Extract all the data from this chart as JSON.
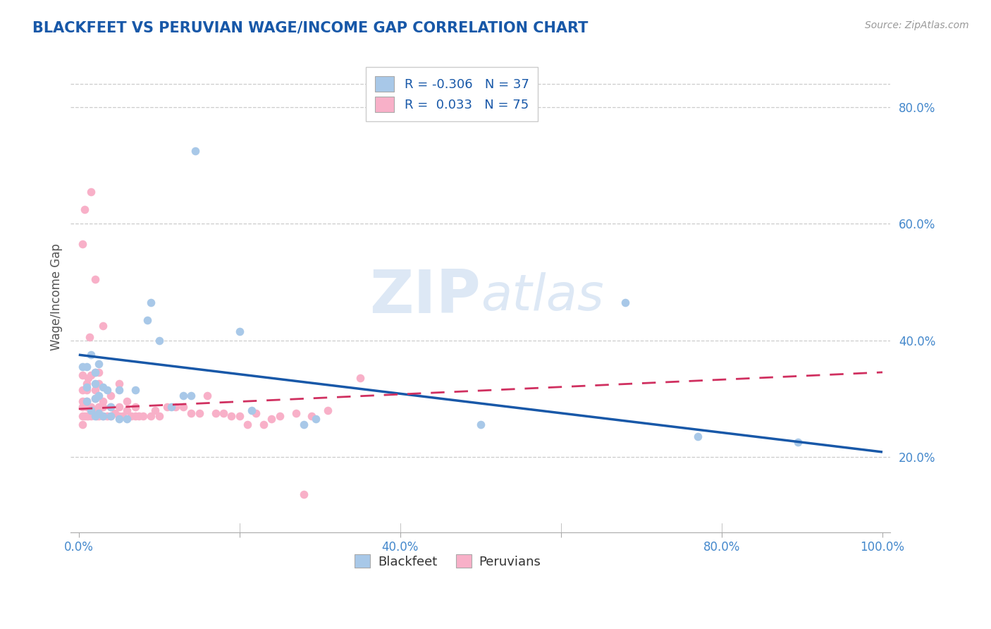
{
  "title": "BLACKFEET VS PERUVIAN WAGE/INCOME GAP CORRELATION CHART",
  "source": "Source: ZipAtlas.com",
  "ylabel": "Wage/Income Gap",
  "xlim": [
    -0.01,
    1.01
  ],
  "ylim": [
    0.07,
    0.88
  ],
  "xticks": [
    0.0,
    0.2,
    0.4,
    0.6,
    0.8,
    1.0
  ],
  "xticklabels": [
    "0.0%",
    "",
    "40.0%",
    "",
    "80.0%",
    "100.0%"
  ],
  "ytick_vals": [
    0.2,
    0.4,
    0.6,
    0.8
  ],
  "yticklabels": [
    "20.0%",
    "40.0%",
    "60.0%",
    "80.0%"
  ],
  "r_blackfeet": -0.306,
  "n_blackfeet": 37,
  "r_peruvians": 0.033,
  "n_peruvians": 75,
  "blackfeet_color": "#a8c8e8",
  "peruvian_color": "#f8b0c8",
  "blackfeet_line_color": "#1858a8",
  "peruvian_line_color": "#d03060",
  "title_color": "#1858a8",
  "axis_tick_color": "#4488cc",
  "watermark_color": "#dde8f5",
  "bf_line_x0": 0.0,
  "bf_line_y0": 0.375,
  "bf_line_x1": 1.0,
  "bf_line_y1": 0.208,
  "pe_line_x0": 0.0,
  "pe_line_y0": 0.282,
  "pe_line_x1": 1.0,
  "pe_line_y1": 0.345,
  "blackfeet_x": [
    0.005,
    0.01,
    0.01,
    0.01,
    0.015,
    0.015,
    0.02,
    0.02,
    0.02,
    0.02,
    0.025,
    0.025,
    0.025,
    0.03,
    0.03,
    0.035,
    0.04,
    0.04,
    0.05,
    0.05,
    0.06,
    0.07,
    0.085,
    0.09,
    0.1,
    0.115,
    0.13,
    0.14,
    0.145,
    0.2,
    0.215,
    0.28,
    0.295,
    0.5,
    0.68,
    0.77,
    0.895
  ],
  "blackfeet_y": [
    0.355,
    0.295,
    0.32,
    0.355,
    0.28,
    0.375,
    0.27,
    0.3,
    0.325,
    0.345,
    0.275,
    0.305,
    0.36,
    0.27,
    0.32,
    0.315,
    0.27,
    0.285,
    0.265,
    0.315,
    0.265,
    0.315,
    0.435,
    0.465,
    0.4,
    0.285,
    0.305,
    0.305,
    0.725,
    0.415,
    0.28,
    0.255,
    0.265,
    0.255,
    0.465,
    0.235,
    0.225
  ],
  "peruvian_x": [
    0.005,
    0.005,
    0.005,
    0.005,
    0.005,
    0.005,
    0.005,
    0.007,
    0.007,
    0.01,
    0.01,
    0.01,
    0.01,
    0.01,
    0.012,
    0.012,
    0.012,
    0.013,
    0.015,
    0.015,
    0.015,
    0.015,
    0.02,
    0.02,
    0.02,
    0.02,
    0.02,
    0.022,
    0.025,
    0.025,
    0.025,
    0.025,
    0.03,
    0.03,
    0.03,
    0.03,
    0.035,
    0.04,
    0.04,
    0.04,
    0.045,
    0.05,
    0.05,
    0.05,
    0.055,
    0.06,
    0.06,
    0.065,
    0.07,
    0.07,
    0.075,
    0.08,
    0.09,
    0.095,
    0.1,
    0.11,
    0.12,
    0.13,
    0.14,
    0.15,
    0.16,
    0.17,
    0.18,
    0.19,
    0.2,
    0.21,
    0.22,
    0.23,
    0.24,
    0.25,
    0.27,
    0.28,
    0.29,
    0.31,
    0.35
  ],
  "peruvian_y": [
    0.255,
    0.27,
    0.285,
    0.295,
    0.315,
    0.34,
    0.565,
    0.27,
    0.625,
    0.27,
    0.285,
    0.295,
    0.315,
    0.325,
    0.27,
    0.285,
    0.335,
    0.405,
    0.27,
    0.285,
    0.34,
    0.655,
    0.28,
    0.3,
    0.315,
    0.345,
    0.505,
    0.27,
    0.27,
    0.285,
    0.325,
    0.345,
    0.27,
    0.285,
    0.295,
    0.425,
    0.27,
    0.27,
    0.285,
    0.305,
    0.275,
    0.27,
    0.285,
    0.325,
    0.27,
    0.28,
    0.295,
    0.27,
    0.27,
    0.285,
    0.27,
    0.27,
    0.27,
    0.28,
    0.27,
    0.285,
    0.285,
    0.285,
    0.275,
    0.275,
    0.305,
    0.275,
    0.275,
    0.27,
    0.27,
    0.255,
    0.275,
    0.255,
    0.265,
    0.27,
    0.275,
    0.135,
    0.27,
    0.28,
    0.335
  ]
}
